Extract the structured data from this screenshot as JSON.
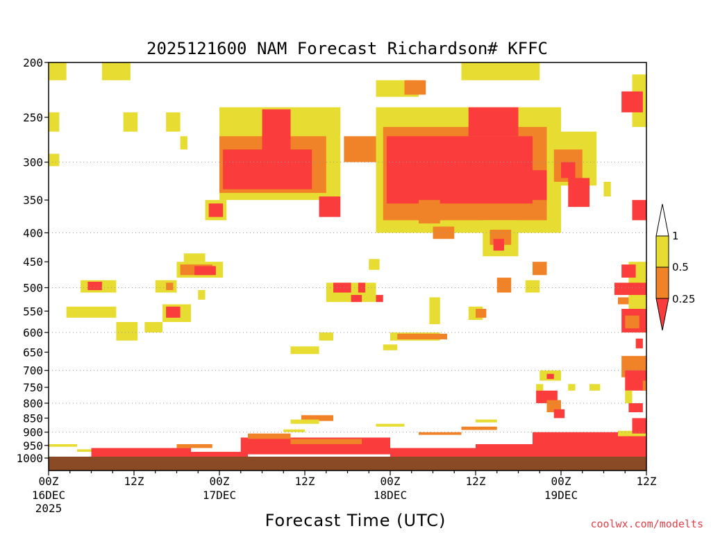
{
  "chart_data": {
    "type": "heatmap",
    "title": "2025121600 NAM Forecast Richardson# KFFC",
    "xlabel": "Forecast Time (UTC)",
    "ylabel": "",
    "credit": "coolwx.com/modelts",
    "y_axis": {
      "scale": "pressure (hPa), reversed",
      "range": [
        1000,
        200
      ],
      "ticks": [
        "200",
        "250",
        "300",
        "350",
        "400",
        "450",
        "500",
        "550",
        "600",
        "650",
        "700",
        "750",
        "800",
        "850",
        "900",
        "950",
        "1000"
      ],
      "gridlines": [
        "300",
        "400",
        "500",
        "600",
        "700",
        "800",
        "900",
        "1000"
      ]
    },
    "x_axis": {
      "range_hours": [
        0,
        84
      ],
      "ticks": [
        {
          "hour": 0,
          "label": "00Z",
          "date": "16DEC",
          "year": "2025"
        },
        {
          "hour": 12,
          "label": "12Z",
          "date": "",
          "year": ""
        },
        {
          "hour": 24,
          "label": "00Z",
          "date": "17DEC",
          "year": ""
        },
        {
          "hour": 36,
          "label": "12Z",
          "date": "",
          "year": ""
        },
        {
          "hour": 48,
          "label": "00Z",
          "date": "18DEC",
          "year": ""
        },
        {
          "hour": 60,
          "label": "12Z",
          "date": "",
          "year": ""
        },
        {
          "hour": 72,
          "label": "00Z",
          "date": "19DEC",
          "year": ""
        },
        {
          "hour": 84,
          "label": "12Z",
          "date": "",
          "year": ""
        }
      ]
    },
    "legend": {
      "placement": "right",
      "labels": [
        "1",
        "0.5",
        "0.25"
      ],
      "bins": [
        {
          "range": "> 1",
          "color": "#ffffff"
        },
        {
          "range": "0.5 - 1",
          "color": "#e6dc32"
        },
        {
          "range": "0.25 - 0.5",
          "color": "#f08228"
        },
        {
          "range": "< 0.25",
          "color": "#fa3c3c"
        }
      ]
    },
    "regions": [
      {
        "cat": "y",
        "t0": 0,
        "t1": 2.5,
        "p0": 200,
        "p1": 215
      },
      {
        "cat": "y",
        "t0": 7.5,
        "t1": 11.5,
        "p0": 200,
        "p1": 215
      },
      {
        "cat": "y",
        "t0": 0,
        "t1": 1.5,
        "p0": 245,
        "p1": 265
      },
      {
        "cat": "y",
        "t0": 0,
        "t1": 1.5,
        "p0": 290,
        "p1": 305
      },
      {
        "cat": "y",
        "t0": 10.5,
        "t1": 12.5,
        "p0": 245,
        "p1": 265
      },
      {
        "cat": "y",
        "t0": 16.5,
        "t1": 18.5,
        "p0": 245,
        "p1": 265
      },
      {
        "cat": "y",
        "t0": 18.5,
        "t1": 19.5,
        "p0": 270,
        "p1": 285
      },
      {
        "cat": "y",
        "t0": 22,
        "t1": 25,
        "p0": 350,
        "p1": 380
      },
      {
        "cat": "r",
        "t0": 22.5,
        "t1": 24.5,
        "p0": 355,
        "p1": 375
      },
      {
        "cat": "y",
        "t0": 24,
        "t1": 41,
        "p0": 240,
        "p1": 350
      },
      {
        "cat": "o",
        "t0": 24,
        "t1": 39,
        "p0": 270,
        "p1": 340
      },
      {
        "cat": "r",
        "t0": 24.5,
        "t1": 37,
        "p0": 285,
        "p1": 335
      },
      {
        "cat": "r",
        "t0": 30,
        "t1": 34,
        "p0": 242,
        "p1": 290
      },
      {
        "cat": "r",
        "t0": 38,
        "t1": 41,
        "p0": 345,
        "p1": 375
      },
      {
        "cat": "o",
        "t0": 41.5,
        "t1": 47,
        "p0": 270,
        "p1": 300
      },
      {
        "cat": "y",
        "t0": 46,
        "t1": 52,
        "p0": 215,
        "p1": 230
      },
      {
        "cat": "o",
        "t0": 50,
        "t1": 53,
        "p0": 215,
        "p1": 228
      },
      {
        "cat": "y",
        "t0": 58,
        "t1": 69,
        "p0": 200,
        "p1": 215
      },
      {
        "cat": "y",
        "t0": 46,
        "t1": 72,
        "p0": 240,
        "p1": 400
      },
      {
        "cat": "o",
        "t0": 47,
        "t1": 70,
        "p0": 260,
        "p1": 380
      },
      {
        "cat": "r",
        "t0": 47.5,
        "t1": 68,
        "p0": 270,
        "p1": 355
      },
      {
        "cat": "r",
        "t0": 59,
        "t1": 66,
        "p0": 240,
        "p1": 270
      },
      {
        "cat": "o",
        "t0": 52,
        "t1": 55,
        "p0": 350,
        "p1": 385
      },
      {
        "cat": "o",
        "t0": 54,
        "t1": 57,
        "p0": 390,
        "p1": 410
      },
      {
        "cat": "y",
        "t0": 70,
        "t1": 77,
        "p0": 265,
        "p1": 330
      },
      {
        "cat": "o",
        "t0": 71,
        "t1": 75,
        "p0": 285,
        "p1": 325
      },
      {
        "cat": "r",
        "t0": 72,
        "t1": 74,
        "p0": 300,
        "p1": 320
      },
      {
        "cat": "r",
        "t0": 66,
        "t1": 70,
        "p0": 310,
        "p1": 350
      },
      {
        "cat": "r",
        "t0": 73,
        "t1": 76,
        "p0": 320,
        "p1": 360
      },
      {
        "cat": "y",
        "t0": 82,
        "t1": 84,
        "p0": 210,
        "p1": 260
      },
      {
        "cat": "r",
        "t0": 80.5,
        "t1": 83.5,
        "p0": 225,
        "p1": 245
      },
      {
        "cat": "r",
        "t0": 82,
        "t1": 84,
        "p0": 350,
        "p1": 380
      },
      {
        "cat": "y",
        "t0": 78,
        "t1": 79,
        "p0": 325,
        "p1": 345
      },
      {
        "cat": "y",
        "t0": 19,
        "t1": 22,
        "p0": 435,
        "p1": 450
      },
      {
        "cat": "y",
        "t0": 18,
        "t1": 24.5,
        "p0": 450,
        "p1": 480
      },
      {
        "cat": "o",
        "t0": 18.5,
        "t1": 23,
        "p0": 455,
        "p1": 475
      },
      {
        "cat": "r",
        "t0": 20.5,
        "t1": 23.5,
        "p0": 458,
        "p1": 475
      },
      {
        "cat": "y",
        "t0": 4.5,
        "t1": 9.5,
        "p0": 485,
        "p1": 510
      },
      {
        "cat": "r",
        "t0": 5.5,
        "t1": 7.5,
        "p0": 488,
        "p1": 505
      },
      {
        "cat": "y",
        "t0": 15,
        "t1": 18,
        "p0": 485,
        "p1": 510
      },
      {
        "cat": "o",
        "t0": 16.5,
        "t1": 17.5,
        "p0": 490,
        "p1": 505
      },
      {
        "cat": "y",
        "t0": 2.5,
        "t1": 9.5,
        "p0": 540,
        "p1": 565
      },
      {
        "cat": "y",
        "t0": 16,
        "t1": 20,
        "p0": 535,
        "p1": 575
      },
      {
        "cat": "r",
        "t0": 16.5,
        "t1": 18.5,
        "p0": 540,
        "p1": 565
      },
      {
        "cat": "y",
        "t0": 9.5,
        "t1": 12.5,
        "p0": 575,
        "p1": 620
      },
      {
        "cat": "y",
        "t0": 13.5,
        "t1": 16,
        "p0": 575,
        "p1": 600
      },
      {
        "cat": "y",
        "t0": 21,
        "t1": 22,
        "p0": 505,
        "p1": 525
      },
      {
        "cat": "y",
        "t0": 39,
        "t1": 46,
        "p0": 490,
        "p1": 530
      },
      {
        "cat": "r",
        "t0": 40,
        "t1": 42.5,
        "p0": 490,
        "p1": 510
      },
      {
        "cat": "r",
        "t0": 43.5,
        "t1": 44.5,
        "p0": 490,
        "p1": 510
      },
      {
        "cat": "r",
        "t0": 42.5,
        "t1": 44,
        "p0": 515,
        "p1": 530
      },
      {
        "cat": "r",
        "t0": 46,
        "t1": 47,
        "p0": 515,
        "p1": 530
      },
      {
        "cat": "y",
        "t0": 45,
        "t1": 46.5,
        "p0": 445,
        "p1": 465
      },
      {
        "cat": "y",
        "t0": 48,
        "t1": 55,
        "p0": 600,
        "p1": 620
      },
      {
        "cat": "o",
        "t0": 49,
        "t1": 54,
        "p0": 603,
        "p1": 617
      },
      {
        "cat": "o",
        "t0": 54,
        "t1": 56,
        "p0": 603,
        "p1": 617
      },
      {
        "cat": "y",
        "t0": 34,
        "t1": 38,
        "p0": 635,
        "p1": 655
      },
      {
        "cat": "y",
        "t0": 38,
        "t1": 40,
        "p0": 600,
        "p1": 620
      },
      {
        "cat": "y",
        "t0": 47,
        "t1": 49,
        "p0": 630,
        "p1": 645
      },
      {
        "cat": "y",
        "t0": 53.5,
        "t1": 55,
        "p0": 520,
        "p1": 580
      },
      {
        "cat": "y",
        "t0": 59,
        "t1": 61,
        "p0": 540,
        "p1": 570
      },
      {
        "cat": "o",
        "t0": 60,
        "t1": 61.5,
        "p0": 545,
        "p1": 565
      },
      {
        "cat": "y",
        "t0": 61,
        "t1": 66,
        "p0": 380,
        "p1": 440
      },
      {
        "cat": "o",
        "t0": 62,
        "t1": 65,
        "p0": 395,
        "p1": 420
      },
      {
        "cat": "r",
        "t0": 62.5,
        "t1": 64,
        "p0": 410,
        "p1": 430
      },
      {
        "cat": "o",
        "t0": 63,
        "t1": 65,
        "p0": 480,
        "p1": 510
      },
      {
        "cat": "y",
        "t0": 67,
        "t1": 69,
        "p0": 485,
        "p1": 510
      },
      {
        "cat": "o",
        "t0": 68,
        "t1": 70,
        "p0": 450,
        "p1": 475
      },
      {
        "cat": "y",
        "t0": 81.5,
        "t1": 84,
        "p0": 450,
        "p1": 600
      },
      {
        "cat": "r",
        "t0": 79.5,
        "t1": 84,
        "p0": 490,
        "p1": 515
      },
      {
        "cat": "r",
        "t0": 80.5,
        "t1": 82.5,
        "p0": 455,
        "p1": 480
      },
      {
        "cat": "o",
        "t0": 80,
        "t1": 81.5,
        "p0": 520,
        "p1": 535
      },
      {
        "cat": "r",
        "t0": 80.5,
        "t1": 84,
        "p0": 545,
        "p1": 600
      },
      {
        "cat": "o",
        "t0": 81,
        "t1": 83,
        "p0": 560,
        "p1": 590
      },
      {
        "cat": "r",
        "t0": 82.5,
        "t1": 83.5,
        "p0": 615,
        "p1": 640
      },
      {
        "cat": "y",
        "t0": 69,
        "t1": 72,
        "p0": 700,
        "p1": 730
      },
      {
        "cat": "r",
        "t0": 70,
        "t1": 71,
        "p0": 710,
        "p1": 725
      },
      {
        "cat": "y",
        "t0": 68.5,
        "t1": 69.5,
        "p0": 740,
        "p1": 760
      },
      {
        "cat": "r",
        "t0": 68.5,
        "t1": 71.5,
        "p0": 760,
        "p1": 800
      },
      {
        "cat": "o",
        "t0": 70,
        "t1": 72,
        "p0": 790,
        "p1": 830
      },
      {
        "cat": "r",
        "t0": 71,
        "t1": 72.5,
        "p0": 820,
        "p1": 850
      },
      {
        "cat": "y",
        "t0": 76,
        "t1": 77.5,
        "p0": 740,
        "p1": 760
      },
      {
        "cat": "y",
        "t0": 73,
        "t1": 74,
        "p0": 740,
        "p1": 760
      },
      {
        "cat": "o",
        "t0": 80.5,
        "t1": 84,
        "p0": 660,
        "p1": 720
      },
      {
        "cat": "r",
        "t0": 81,
        "t1": 84,
        "p0": 700,
        "p1": 760
      },
      {
        "cat": "y",
        "t0": 81,
        "t1": 82,
        "p0": 760,
        "p1": 800
      },
      {
        "cat": "r",
        "t0": 81.5,
        "t1": 83.5,
        "p0": 800,
        "p1": 830
      },
      {
        "cat": "o",
        "t0": 83.5,
        "t1": 84,
        "p0": 730,
        "p1": 760
      },
      {
        "cat": "y",
        "t0": 28,
        "t1": 35,
        "p0": 935,
        "p1": 950
      },
      {
        "cat": "o",
        "t0": 35.5,
        "t1": 40,
        "p0": 840,
        "p1": 860
      },
      {
        "cat": "y",
        "t0": 34,
        "t1": 38,
        "p0": 855,
        "p1": 870
      },
      {
        "cat": "y",
        "t0": 33,
        "t1": 36,
        "p0": 890,
        "p1": 900
      },
      {
        "cat": "y",
        "t0": 46,
        "t1": 50,
        "p0": 870,
        "p1": 880
      },
      {
        "cat": "y",
        "t0": 60,
        "t1": 63,
        "p0": 855,
        "p1": 865
      },
      {
        "cat": "o",
        "t0": 58,
        "t1": 63,
        "p0": 880,
        "p1": 892
      },
      {
        "cat": "o",
        "t0": 52,
        "t1": 58,
        "p0": 900,
        "p1": 910
      },
      {
        "cat": "y",
        "t0": 0,
        "t1": 4,
        "p0": 945,
        "p1": 955
      },
      {
        "cat": "y",
        "t0": 4,
        "t1": 8,
        "p0": 965,
        "p1": 975
      },
      {
        "cat": "r",
        "t0": 6,
        "t1": 20,
        "p0": 960,
        "p1": 995
      },
      {
        "cat": "o",
        "t0": 18,
        "t1": 23,
        "p0": 945,
        "p1": 960
      },
      {
        "cat": "r",
        "t0": 20,
        "t1": 28,
        "p0": 975,
        "p1": 998
      },
      {
        "cat": "r",
        "t0": 27,
        "t1": 48,
        "p0": 920,
        "p1": 985
      },
      {
        "cat": "o",
        "t0": 28,
        "t1": 34,
        "p0": 905,
        "p1": 925
      },
      {
        "cat": "o",
        "t0": 34,
        "t1": 44,
        "p0": 925,
        "p1": 945
      },
      {
        "cat": "r",
        "t0": 48,
        "t1": 60,
        "p0": 960,
        "p1": 998
      },
      {
        "cat": "r",
        "t0": 60,
        "t1": 68,
        "p0": 945,
        "p1": 998
      },
      {
        "cat": "r",
        "t0": 68,
        "t1": 84,
        "p0": 900,
        "p1": 998
      },
      {
        "cat": "y",
        "t0": 80,
        "t1": 84,
        "p0": 895,
        "p1": 915
      },
      {
        "cat": "r",
        "t0": 82,
        "t1": 84,
        "p0": 850,
        "p1": 905
      }
    ]
  }
}
